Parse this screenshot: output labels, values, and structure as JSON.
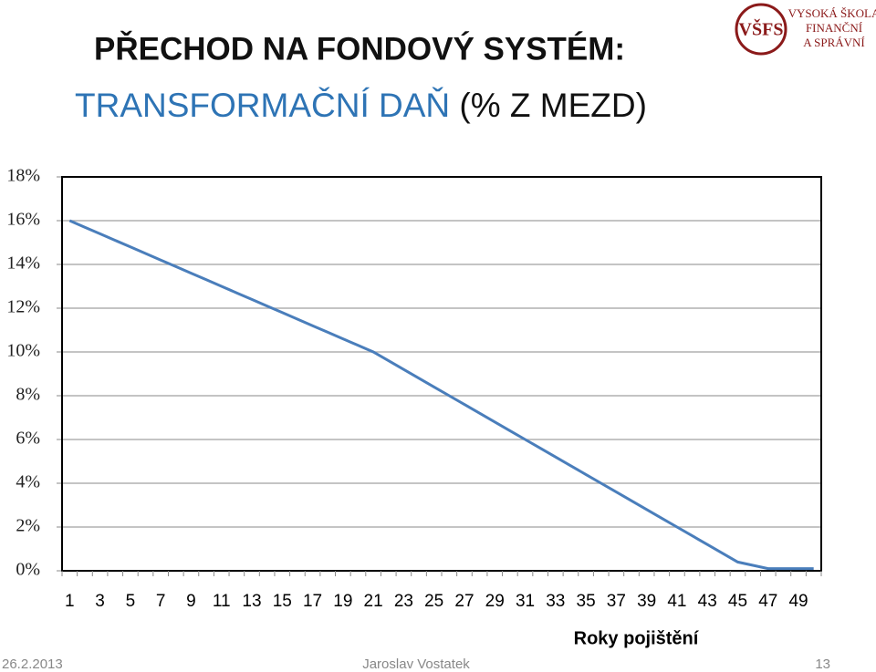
{
  "header": {
    "title_line1": "PŘECHOD NA FONDOVÝ SYSTÉM:",
    "title_line2_colored": "TRANSFORMAČNÍ DAŇ",
    "title_line2_rest": " (% Z MEZD)"
  },
  "logo": {
    "mark": "VŠFS",
    "lines": [
      "VYSOKÁ ŠKOLA",
      "FINANČNÍ",
      "A SPRÁVNÍ"
    ]
  },
  "chart_data": {
    "type": "line",
    "x_label": "Roky pojištění",
    "categories": [
      1,
      null,
      3,
      null,
      5,
      null,
      7,
      null,
      9,
      null,
      11,
      null,
      13,
      null,
      15,
      null,
      17,
      null,
      19,
      null,
      21,
      null,
      23,
      null,
      25,
      null,
      27,
      null,
      29,
      null,
      31,
      null,
      33,
      null,
      35,
      null,
      37,
      null,
      39,
      null,
      41,
      null,
      43,
      null,
      45,
      null,
      47,
      null,
      49,
      null
    ],
    "values": [
      16,
      15.7,
      15.4,
      15.1,
      14.8,
      14.5,
      14.2,
      13.9,
      13.6,
      13.3,
      13,
      12.7,
      12.4,
      12.1,
      11.8,
      11.5,
      11.2,
      10.9,
      10.6,
      10.3,
      10,
      9.6,
      9.2,
      8.8,
      8.4,
      8,
      7.6,
      7.2,
      6.8,
      6.4,
      6,
      5.6,
      5.2,
      4.8,
      4.4,
      4,
      3.6,
      3.2,
      2.8,
      2.4,
      2,
      1.6,
      1.2,
      0.8,
      0.4,
      0.25,
      0.1,
      0.1,
      0.1,
      0.1
    ],
    "color": "#4a7ebb",
    "ylim": [
      0,
      18
    ],
    "yticks": [
      {
        "value": 0,
        "label": "0%"
      },
      {
        "value": 2,
        "label": "2%"
      },
      {
        "value": 4,
        "label": "4%"
      },
      {
        "value": 6,
        "label": "6%"
      },
      {
        "value": 8,
        "label": "8%"
      },
      {
        "value": 10,
        "label": "10%"
      },
      {
        "value": 12,
        "label": "12%"
      },
      {
        "value": 14,
        "label": "14%"
      },
      {
        "value": 16,
        "label": "16%"
      },
      {
        "value": 18,
        "label": "18%"
      }
    ],
    "grid": true
  },
  "footer": {
    "date": "26.2.2013",
    "author": "Jaroslav Vostatek",
    "page": 13
  }
}
